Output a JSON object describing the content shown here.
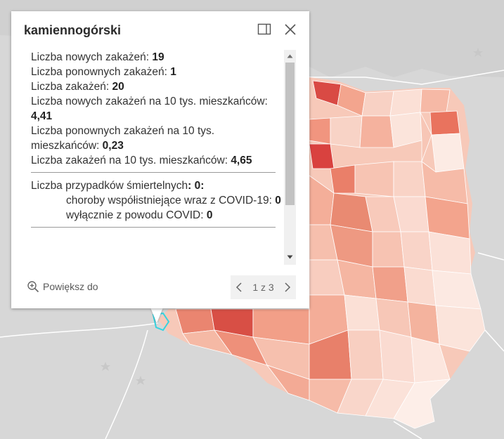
{
  "popup": {
    "title": "kamiennogórski",
    "dock_icon": "dock-panel-icon",
    "close_icon": "close-icon",
    "stats": [
      {
        "label": "Liczba nowych zakażeń: ",
        "value": "19"
      },
      {
        "label": "Liczba ponownych zakażeń: ",
        "value": "1"
      },
      {
        "label": "Liczba zakażeń: ",
        "value": "20"
      },
      {
        "label": "Liczba nowych zakażeń na 10 tys. mieszkańców: ",
        "value": "4,41"
      },
      {
        "label": "Liczba ponownych zakażeń na 10 tys. mieszkańców: ",
        "value": "0,23"
      },
      {
        "label": "Liczba zakażeń na 10 tys. mieszkańców: ",
        "value": "4,65"
      }
    ],
    "deaths": {
      "label": "Liczba przypadków śmiertelnych",
      "value": ": 0:",
      "comorbid_label": "choroby współistniejące wraz z COVID-19: ",
      "comorbid_value": "0",
      "covid_only_label": "wyłącznie z powodu COVID: ",
      "covid_only_value": "0"
    },
    "zoom_label": "Powiększ do",
    "pager_label": "1 z 3"
  },
  "colors": {
    "map_background": "#d6d6d6",
    "border_gray": "#ffffff",
    "choropleth_light": "#fbe3da",
    "choropleth_mid": "#f4a78f",
    "choropleth_dark": "#d9534a",
    "highlight": "#36d3e0"
  }
}
